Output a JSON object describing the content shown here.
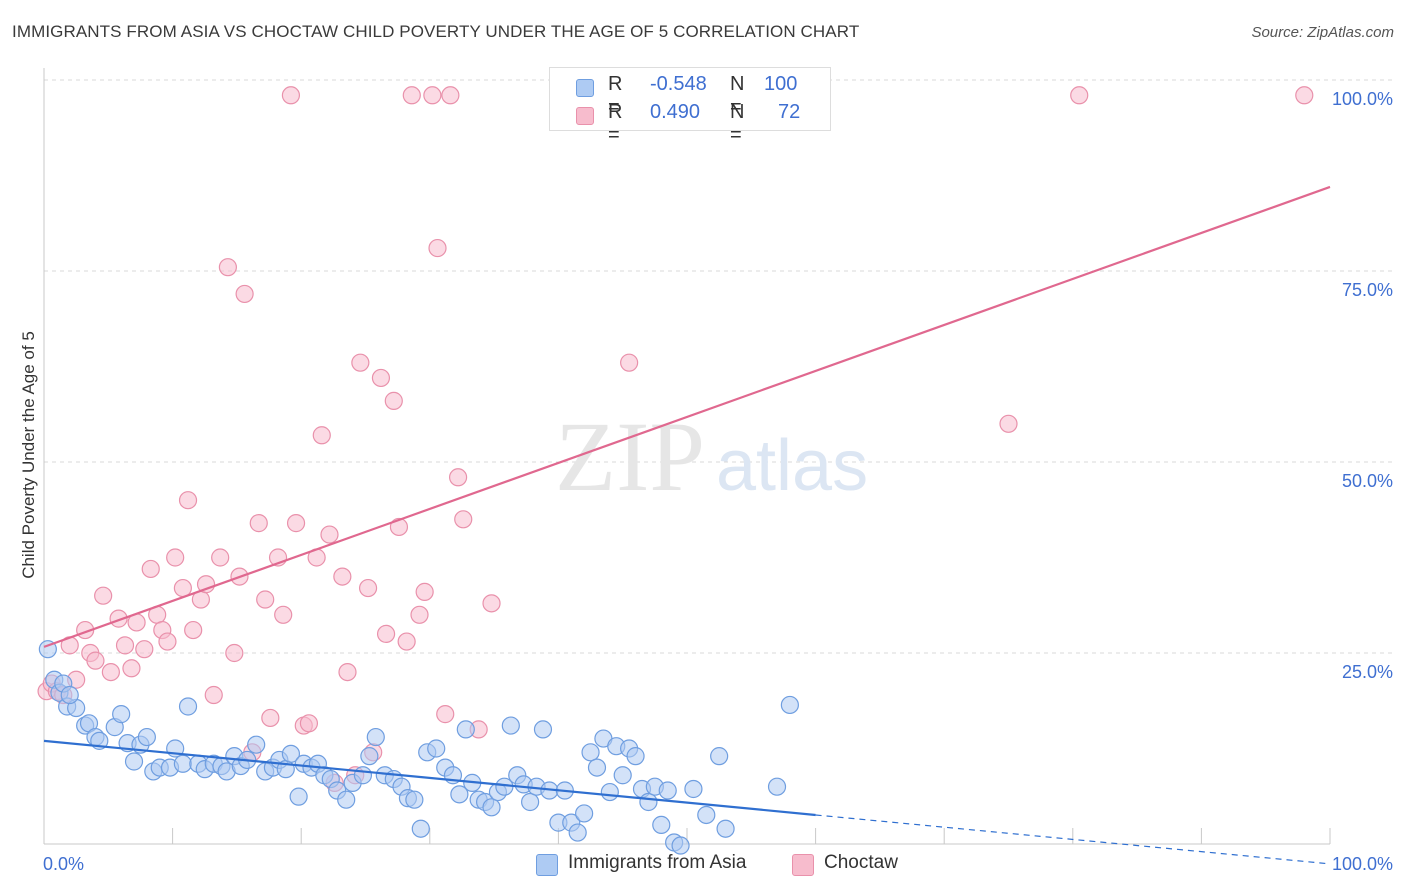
{
  "header": {
    "title": "IMMIGRANTS FROM ASIA VS CHOCTAW CHILD POVERTY UNDER THE AGE OF 5 CORRELATION CHART",
    "source": "Source: ZipAtlas.com"
  },
  "watermark": {
    "zip": "ZIP",
    "atlas": "atlas"
  },
  "colors": {
    "blue_fill": "#aecbf3",
    "blue_stroke": "#6f9ee0",
    "blue_line": "#2f6fd0",
    "pink_fill": "#f7bccd",
    "pink_stroke": "#e991ab",
    "pink_line": "#e0688f",
    "tick_label": "#3f6fd1",
    "grid": "#d9d9d9"
  },
  "legend": {
    "rows": [
      {
        "r_label": "R =",
        "r_value": "-0.548",
        "n_label": "N =",
        "n_value": "100"
      },
      {
        "r_label": "R =",
        "r_value": "0.490",
        "n_label": "N =",
        "n_value": "72"
      }
    ]
  },
  "bottom_legend": {
    "asia": "Immigrants from Asia",
    "choctaw": "Choctaw"
  },
  "chart_data": {
    "type": "scatter",
    "title": "IMMIGRANTS FROM ASIA VS CHOCTAW CHILD POVERTY UNDER THE AGE OF 5 CORRELATION CHART",
    "xlabel": "",
    "ylabel": "Child Poverty Under the Age of 5",
    "xlim": [
      0,
      100
    ],
    "ylim": [
      0,
      100
    ],
    "x_tick_labels": [
      "0.0%",
      "100.0%"
    ],
    "y_ticks": [
      25,
      50,
      75,
      100
    ],
    "y_tick_labels": [
      "25.0%",
      "50.0%",
      "75.0%",
      "100.0%"
    ],
    "grid": true,
    "legend_position": "top-center",
    "series": [
      {
        "name": "Immigrants from Asia",
        "r": -0.548,
        "n": 100,
        "trend": {
          "x0": 0,
          "y0": 13.5,
          "x1": 60,
          "y1": 3.8,
          "dash_x1": 100,
          "dash_y1": -2.6
        },
        "points": [
          [
            0.3,
            25.5
          ],
          [
            0.8,
            21.5
          ],
          [
            1.2,
            19.8
          ],
          [
            1.8,
            18.0
          ],
          [
            2.5,
            17.8
          ],
          [
            3.2,
            15.5
          ],
          [
            3.5,
            15.8
          ],
          [
            4.0,
            14.0
          ],
          [
            4.3,
            13.5
          ],
          [
            5.5,
            15.3
          ],
          [
            6.0,
            17.0
          ],
          [
            6.5,
            13.2
          ],
          [
            7.0,
            10.8
          ],
          [
            7.5,
            13.0
          ],
          [
            8.0,
            14.0
          ],
          [
            8.5,
            9.5
          ],
          [
            9.0,
            10.0
          ],
          [
            9.8,
            10.0
          ],
          [
            10.2,
            12.5
          ],
          [
            10.8,
            10.5
          ],
          [
            11.2,
            18.0
          ],
          [
            12.0,
            10.5
          ],
          [
            12.5,
            9.8
          ],
          [
            13.2,
            10.5
          ],
          [
            13.8,
            10.2
          ],
          [
            14.2,
            9.5
          ],
          [
            14.8,
            11.5
          ],
          [
            15.3,
            10.2
          ],
          [
            15.8,
            11.0
          ],
          [
            16.5,
            13.0
          ],
          [
            17.2,
            9.5
          ],
          [
            17.8,
            10.0
          ],
          [
            18.3,
            11.0
          ],
          [
            18.8,
            9.8
          ],
          [
            19.2,
            11.8
          ],
          [
            19.8,
            6.2
          ],
          [
            20.2,
            10.5
          ],
          [
            20.8,
            10.0
          ],
          [
            21.3,
            10.5
          ],
          [
            21.8,
            9.0
          ],
          [
            22.3,
            8.5
          ],
          [
            22.8,
            7.0
          ],
          [
            23.5,
            5.8
          ],
          [
            24.0,
            8.0
          ],
          [
            24.8,
            9.0
          ],
          [
            25.3,
            11.5
          ],
          [
            25.8,
            14.0
          ],
          [
            26.5,
            9.0
          ],
          [
            27.2,
            8.5
          ],
          [
            27.8,
            7.5
          ],
          [
            28.3,
            6.0
          ],
          [
            28.8,
            5.8
          ],
          [
            29.3,
            2.0
          ],
          [
            29.8,
            12.0
          ],
          [
            30.5,
            12.5
          ],
          [
            31.2,
            10.0
          ],
          [
            31.8,
            9.0
          ],
          [
            32.3,
            6.5
          ],
          [
            32.8,
            15.0
          ],
          [
            33.3,
            8.0
          ],
          [
            33.8,
            5.8
          ],
          [
            34.3,
            5.5
          ],
          [
            34.8,
            4.8
          ],
          [
            35.3,
            6.8
          ],
          [
            35.8,
            7.5
          ],
          [
            36.3,
            15.5
          ],
          [
            36.8,
            9.0
          ],
          [
            37.3,
            7.8
          ],
          [
            37.8,
            5.5
          ],
          [
            38.3,
            7.5
          ],
          [
            38.8,
            15.0
          ],
          [
            39.3,
            7.0
          ],
          [
            40.0,
            2.8
          ],
          [
            40.5,
            7.0
          ],
          [
            41.0,
            2.8
          ],
          [
            41.5,
            1.5
          ],
          [
            42.0,
            4.0
          ],
          [
            42.5,
            12.0
          ],
          [
            43.0,
            10.0
          ],
          [
            43.5,
            13.8
          ],
          [
            44.0,
            6.8
          ],
          [
            44.5,
            12.8
          ],
          [
            45.0,
            9.0
          ],
          [
            45.5,
            12.5
          ],
          [
            46.0,
            11.5
          ],
          [
            46.5,
            7.2
          ],
          [
            47.0,
            5.5
          ],
          [
            47.5,
            7.5
          ],
          [
            48.0,
            2.5
          ],
          [
            48.5,
            7.0
          ],
          [
            49.0,
            0.2
          ],
          [
            49.5,
            -0.2
          ],
          [
            50.5,
            7.2
          ],
          [
            51.5,
            3.8
          ],
          [
            52.5,
            11.5
          ],
          [
            53.0,
            2.0
          ],
          [
            57.0,
            7.5
          ],
          [
            58.0,
            18.2
          ],
          [
            1.5,
            21.0
          ],
          [
            2.0,
            19.5
          ]
        ]
      },
      {
        "name": "Choctaw",
        "r": 0.49,
        "n": 72,
        "trend": {
          "x0": 0,
          "y0": 25.8,
          "x1": 100,
          "y1": 86.0
        },
        "points": [
          [
            0.2,
            20.0
          ],
          [
            0.6,
            21.0
          ],
          [
            1.0,
            20.0
          ],
          [
            1.5,
            19.5
          ],
          [
            2.0,
            26.0
          ],
          [
            2.5,
            21.5
          ],
          [
            3.2,
            28.0
          ],
          [
            3.6,
            25.0
          ],
          [
            4.0,
            24.0
          ],
          [
            4.6,
            32.5
          ],
          [
            5.2,
            22.5
          ],
          [
            5.8,
            29.5
          ],
          [
            6.3,
            26.0
          ],
          [
            6.8,
            23.0
          ],
          [
            7.2,
            29.0
          ],
          [
            7.8,
            25.5
          ],
          [
            8.3,
            36.0
          ],
          [
            8.8,
            30.0
          ],
          [
            9.2,
            28.0
          ],
          [
            9.6,
            26.5
          ],
          [
            10.2,
            37.5
          ],
          [
            10.8,
            33.5
          ],
          [
            11.2,
            45.0
          ],
          [
            11.6,
            28.0
          ],
          [
            12.2,
            32.0
          ],
          [
            12.6,
            34.0
          ],
          [
            13.2,
            19.5
          ],
          [
            13.7,
            37.5
          ],
          [
            14.3,
            75.5
          ],
          [
            14.8,
            25.0
          ],
          [
            15.2,
            35.0
          ],
          [
            15.6,
            72.0
          ],
          [
            16.2,
            12.0
          ],
          [
            16.7,
            42.0
          ],
          [
            17.2,
            32.0
          ],
          [
            17.6,
            16.5
          ],
          [
            18.2,
            37.5
          ],
          [
            18.6,
            30.0
          ],
          [
            19.2,
            98.0
          ],
          [
            19.6,
            42.0
          ],
          [
            20.2,
            15.5
          ],
          [
            20.6,
            15.8
          ],
          [
            21.2,
            37.5
          ],
          [
            21.6,
            53.5
          ],
          [
            22.2,
            40.5
          ],
          [
            22.6,
            8.0
          ],
          [
            23.2,
            35.0
          ],
          [
            23.6,
            22.5
          ],
          [
            24.2,
            9.0
          ],
          [
            24.6,
            63.0
          ],
          [
            25.2,
            33.5
          ],
          [
            25.6,
            12.0
          ],
          [
            26.2,
            61.0
          ],
          [
            26.6,
            27.5
          ],
          [
            27.2,
            58.0
          ],
          [
            27.6,
            41.5
          ],
          [
            28.2,
            26.5
          ],
          [
            28.6,
            98.0
          ],
          [
            29.2,
            30.0
          ],
          [
            29.6,
            33.0
          ],
          [
            30.2,
            98.0
          ],
          [
            30.6,
            78.0
          ],
          [
            31.2,
            17.0
          ],
          [
            31.6,
            98.0
          ],
          [
            32.2,
            48.0
          ],
          [
            32.6,
            42.5
          ],
          [
            33.8,
            15.0
          ],
          [
            34.8,
            31.5
          ],
          [
            45.5,
            63.0
          ],
          [
            75.0,
            55.0
          ],
          [
            80.5,
            98.0
          ],
          [
            98.0,
            98.0
          ]
        ]
      }
    ]
  }
}
